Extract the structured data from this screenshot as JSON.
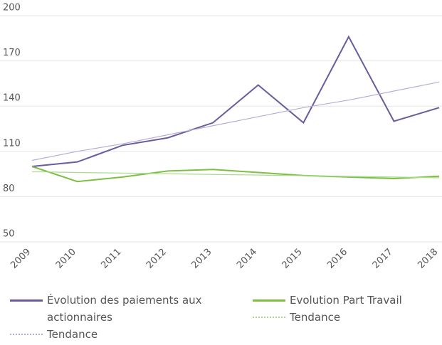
{
  "chart_data": {
    "type": "line",
    "categories": [
      "2009",
      "2010",
      "2011",
      "2012",
      "2013",
      "2014",
      "2015",
      "2016",
      "2017",
      "2018"
    ],
    "series": [
      {
        "name": "Évolution des paiements aux actionnaires",
        "color": "#6b5b9e",
        "values": [
          100,
          103,
          114,
          119,
          129,
          154,
          129,
          186,
          130,
          139
        ]
      },
      {
        "name": "Evolution Part Travail",
        "color": "#7cc043",
        "values": [
          100,
          90,
          93,
          97,
          98,
          96,
          94,
          93,
          92,
          93.5
        ]
      },
      {
        "name": "Tendance",
        "color": "#b7aed6",
        "dotted": true,
        "values": [
          104,
          110,
          115,
          121,
          127,
          133,
          139,
          144,
          150,
          156
        ]
      },
      {
        "name": "Tendance",
        "color": "#a9da8c",
        "dotted": true,
        "values": [
          96.5,
          96,
          95.6,
          95.2,
          94.7,
          94.3,
          93.9,
          93.4,
          93,
          92.5
        ]
      }
    ],
    "ylim": [
      50,
      200
    ],
    "yticks": [
      50,
      80,
      110,
      140,
      170,
      200
    ],
    "grid": true
  }
}
